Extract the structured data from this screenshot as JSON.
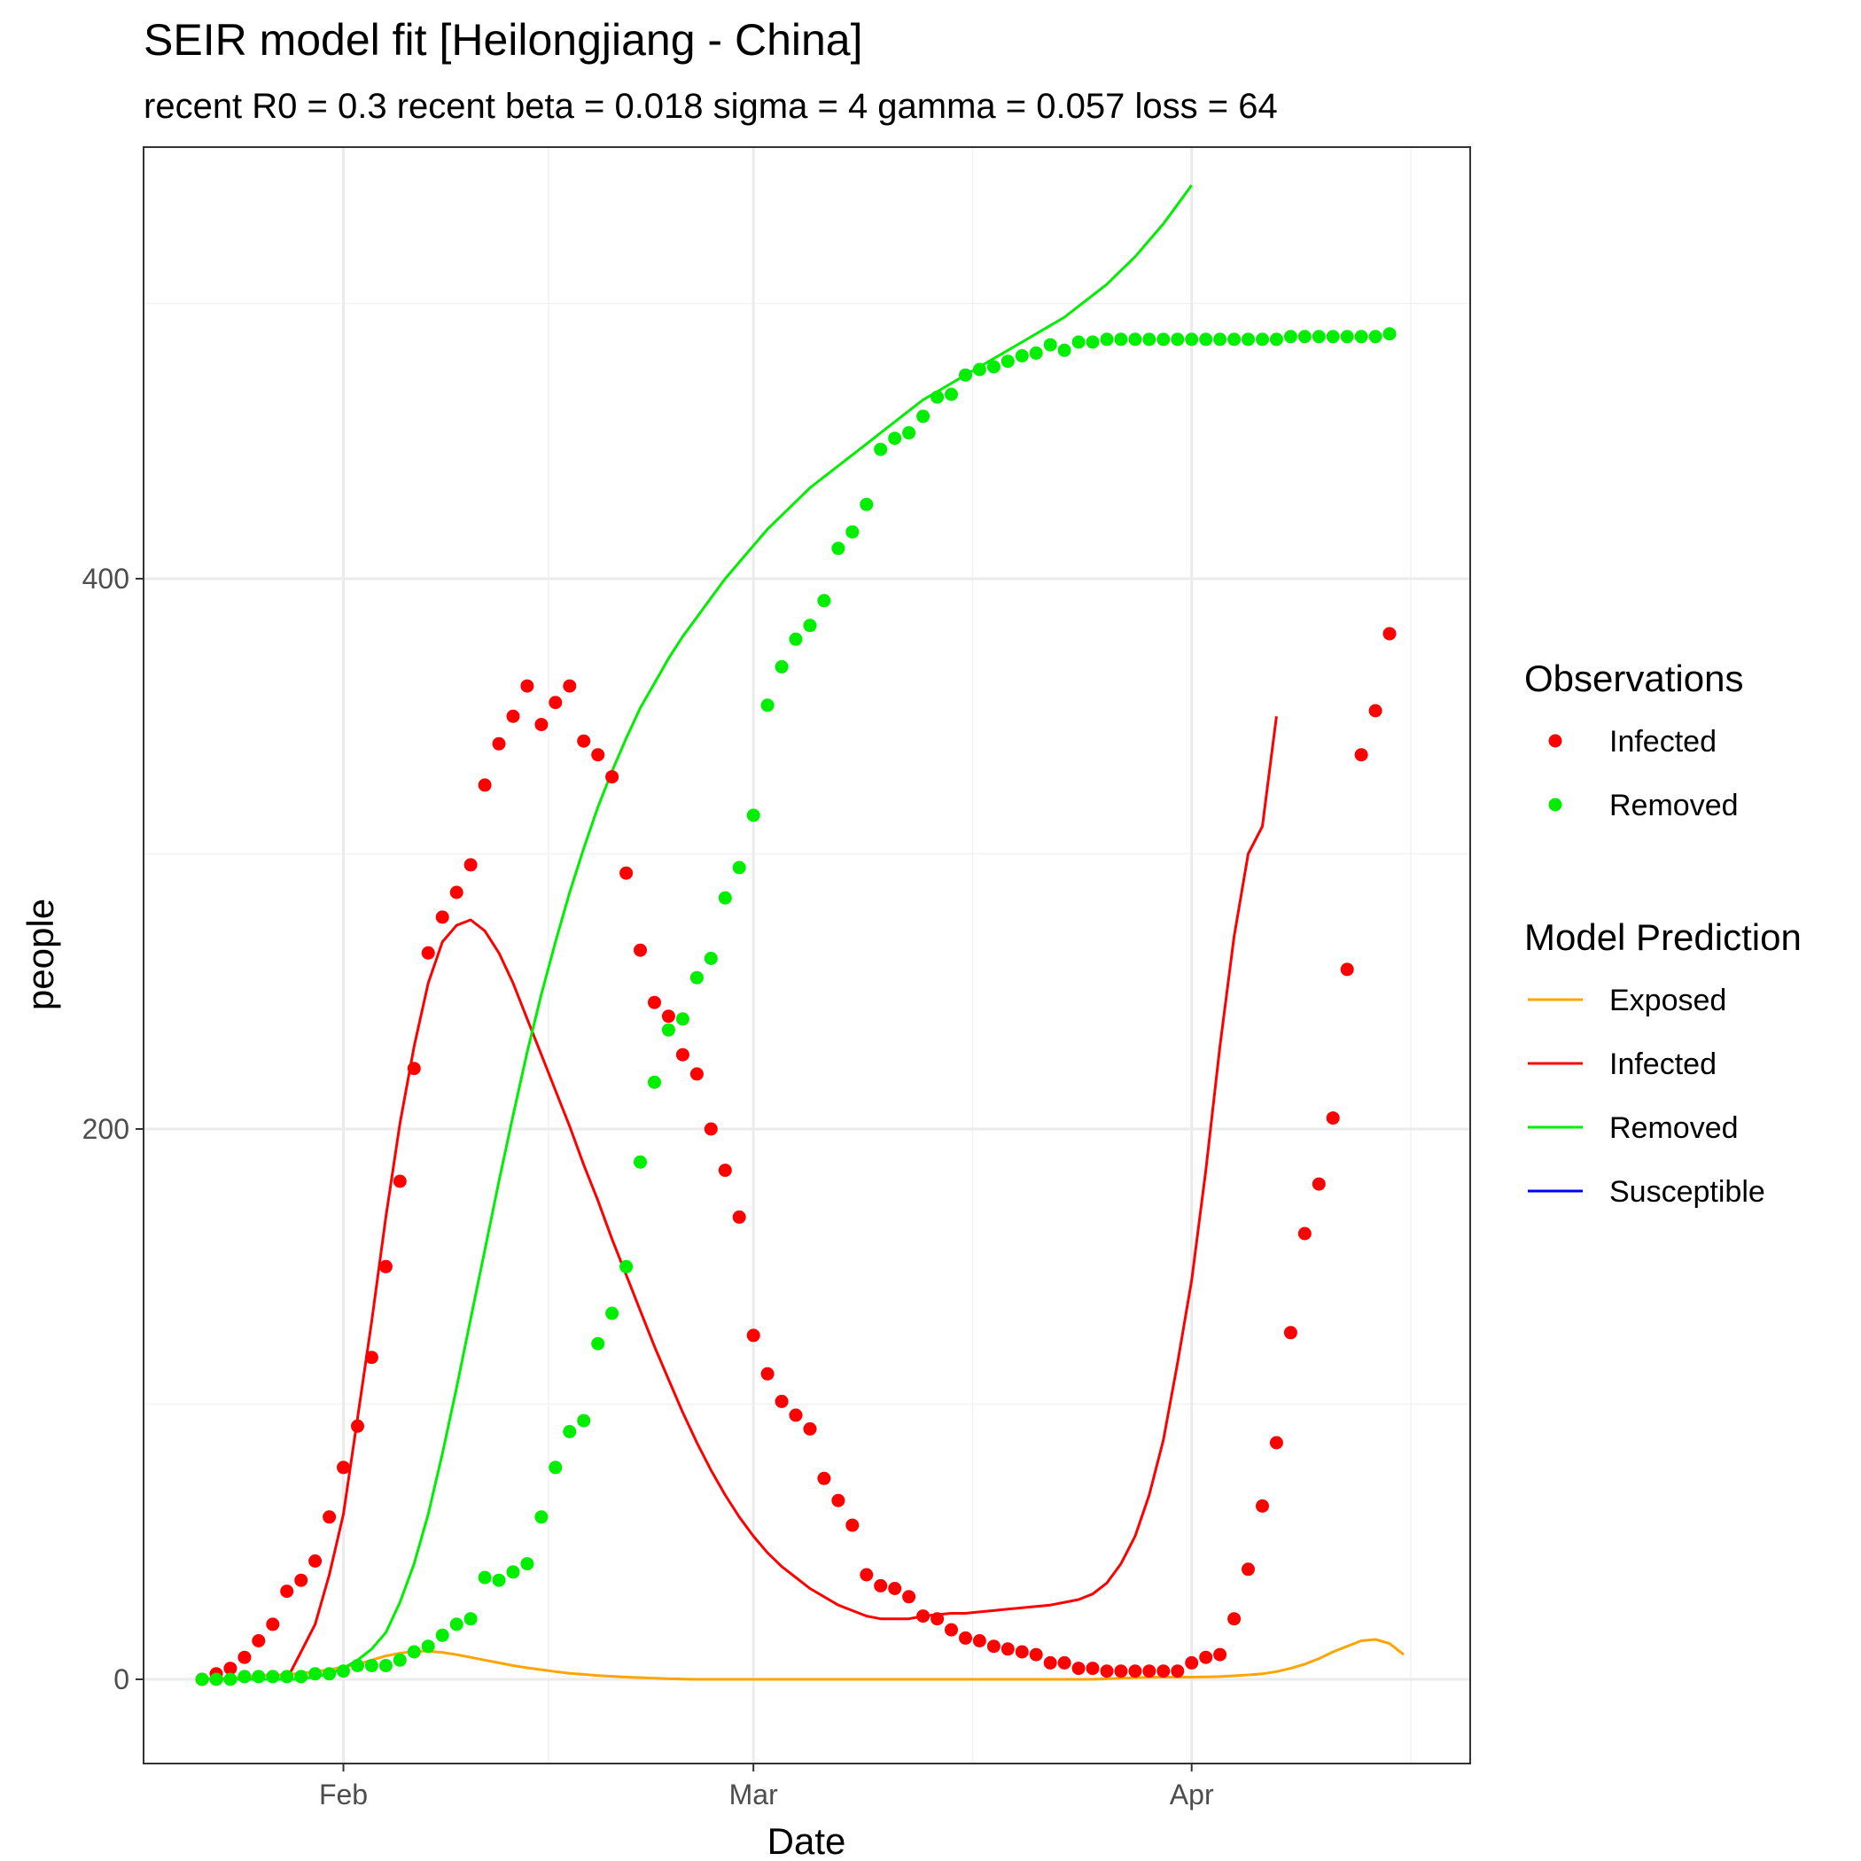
{
  "chart_data": {
    "type": "line",
    "title": "SEIR model fit [Heilongjiang - China]",
    "subtitle": "recent R0 = 0.3 recent beta = 0.018 sigma = 4 gamma = 0.057 loss = 64",
    "xlabel": "Date",
    "ylabel": "people",
    "x_start": "2020-01-22",
    "x_end": "2020-04-16",
    "ylim": [
      -27,
      560
    ],
    "x_ticks": [
      {
        "date": "2020-02-01",
        "label": "Feb"
      },
      {
        "date": "2020-03-01",
        "label": "Mar"
      },
      {
        "date": "2020-04-01",
        "label": "Apr"
      }
    ],
    "y_ticks": [
      0,
      200,
      400
    ],
    "grid": true,
    "legend_position": "right",
    "legend_groups": [
      {
        "title": "Observations",
        "kind": "point",
        "items": [
          {
            "label": "Infected",
            "color": "#ff0000"
          },
          {
            "label": "Removed",
            "color": "#00ee00"
          }
        ]
      },
      {
        "title": "Model Prediction",
        "kind": "line",
        "items": [
          {
            "label": "Exposed",
            "color": "#ffa500"
          },
          {
            "label": "Infected",
            "color": "#ff0000"
          },
          {
            "label": "Removed",
            "color": "#00ee00"
          },
          {
            "label": "Susceptible",
            "color": "#0000ff"
          }
        ]
      }
    ],
    "point_series": [
      {
        "name": "Infected",
        "color": "#ff0000",
        "start": "2020-01-22",
        "values": [
          0,
          2,
          4,
          8,
          14,
          20,
          32,
          36,
          43,
          59,
          77,
          92,
          117,
          150,
          181,
          222,
          264,
          277,
          286,
          296,
          325,
          340,
          350,
          361,
          347,
          355,
          361,
          341,
          336,
          328,
          293,
          265,
          246,
          241,
          227,
          220,
          200,
          185,
          168,
          125,
          111,
          101,
          96,
          91,
          73,
          65,
          56,
          38,
          34,
          33,
          30,
          23,
          22,
          18,
          15,
          14,
          12,
          11,
          10,
          9,
          6,
          6,
          4,
          4,
          3,
          3,
          3,
          3,
          3,
          3,
          6,
          8,
          9,
          22,
          40,
          63,
          86,
          126,
          162,
          180,
          204,
          258,
          336,
          352,
          380
        ]
      },
      {
        "name": "Removed",
        "color": "#00ee00",
        "start": "2020-01-22",
        "values": [
          0,
          0,
          0,
          1,
          1,
          1,
          1,
          1,
          2,
          2,
          3,
          5,
          5,
          5,
          7,
          10,
          12,
          16,
          20,
          22,
          37,
          36,
          39,
          42,
          59,
          77,
          90,
          94,
          122,
          133,
          150,
          188,
          217,
          236,
          240,
          255,
          262,
          284,
          295,
          314,
          354,
          368,
          378,
          383,
          392,
          411,
          417,
          427,
          447,
          451,
          453,
          459,
          466,
          467,
          474,
          476,
          477,
          479,
          481,
          482,
          485,
          483,
          486,
          486,
          487,
          487,
          487,
          487,
          487,
          487,
          487,
          487,
          487,
          487,
          487,
          487,
          487,
          488,
          488,
          488,
          488,
          488,
          488,
          488,
          489
        ]
      }
    ],
    "line_series": [
      {
        "name": "Exposed",
        "color": "#ffa500",
        "start": "2020-01-22",
        "values": [
          0,
          0.3,
          0.5,
          0.8,
          1.2,
          1.5,
          1.8,
          2.2,
          2.8,
          3.5,
          4.5,
          5.5,
          7,
          8.5,
          9.5,
          10.2,
          10.2,
          9.8,
          9,
          8,
          7,
          6,
          5,
          4.2,
          3.5,
          2.8,
          2.2,
          1.8,
          1.4,
          1.1,
          0.8,
          0.6,
          0.4,
          0.2,
          0.1,
          0,
          0,
          0,
          0,
          0,
          0,
          0,
          0,
          0,
          0,
          0,
          0,
          0,
          0,
          0,
          0,
          0,
          0,
          0,
          0,
          0,
          0,
          0,
          0,
          0,
          0,
          0,
          0,
          0,
          0.2,
          0.4,
          0.6,
          0.7,
          0.8,
          0.8,
          0.8,
          0.9,
          1,
          1.3,
          1.6,
          2,
          2.8,
          4,
          5.5,
          7.5,
          10,
          12,
          14,
          14.5,
          13,
          9
        ]
      },
      {
        "name": "Infected",
        "color": "#ff0000",
        "start": "2020-01-22",
        "values": [
          0,
          0,
          0,
          0,
          0,
          0,
          0,
          10,
          20,
          38,
          60,
          95,
          130,
          168,
          202,
          230,
          253,
          268,
          274,
          276,
          272,
          264,
          253,
          240,
          227,
          214,
          201,
          187,
          174,
          160,
          147,
          134,
          121,
          109,
          97,
          86,
          76,
          67,
          59,
          52,
          46,
          41,
          37,
          33,
          30,
          27,
          25,
          23,
          22,
          22,
          22,
          23,
          23.5,
          24,
          24,
          24.5,
          25,
          25.5,
          26,
          26.5,
          27,
          28,
          29,
          31,
          35,
          42,
          52,
          67,
          87,
          115,
          145,
          185,
          230,
          270,
          300,
          310,
          350
        ]
      },
      {
        "name": "Removed",
        "color": "#00ee00",
        "start": "2020-01-22",
        "values": [
          0,
          0,
          0,
          0,
          0,
          0,
          0,
          0,
          1,
          2,
          4,
          7,
          11,
          17,
          28,
          42,
          60,
          82,
          106,
          131,
          156,
          181,
          205,
          228,
          249,
          268,
          286,
          302,
          317,
          330,
          342,
          353,
          362,
          371,
          379,
          386,
          393,
          400,
          406,
          412,
          418,
          423,
          428,
          433,
          437,
          441,
          445,
          449,
          453,
          457,
          461,
          465,
          468,
          471,
          474,
          477,
          480,
          483,
          486,
          489,
          492,
          495,
          499,
          503,
          507,
          512,
          517,
          523,
          529,
          536,
          543
        ]
      }
    ]
  }
}
